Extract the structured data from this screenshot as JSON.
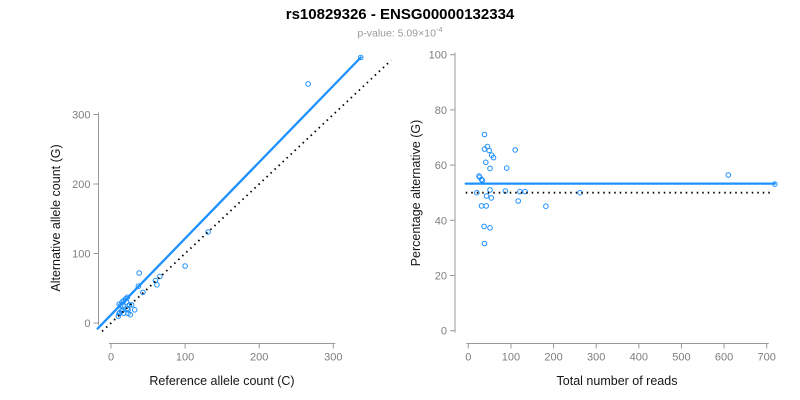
{
  "header": {
    "title": "rs10829326 - ENSG00000132334",
    "subtitle_prefix": "p-value: 5.09×10",
    "subtitle_exponent": "-4"
  },
  "colors": {
    "accent_blue": "#1E90FF",
    "axis_gray": "#999999",
    "tick_text_gray": "#7d7d7d",
    "reference_line_black": "#000000",
    "subtitle_gray": "#9a9a9a"
  },
  "chart_data": [
    {
      "type": "scatter",
      "xlabel": "Reference allele count (C)",
      "ylabel": "Alternative allele count (G)",
      "xticks": [
        0,
        100,
        200,
        300
      ],
      "yticks": [
        0,
        100,
        200,
        300
      ],
      "xlim": [
        -25,
        350
      ],
      "ylim": [
        -15,
        400
      ],
      "grid": false,
      "legend": "none",
      "x": [
        11,
        15,
        13,
        17,
        20,
        38,
        22,
        16,
        21,
        37,
        11,
        12,
        14,
        15,
        10,
        25,
        43,
        60,
        66,
        22,
        28,
        62,
        100,
        17,
        23,
        23,
        32,
        26,
        131,
        266,
        337
      ],
      "y": [
        27,
        30,
        25,
        32,
        35,
        72,
        37,
        25,
        30,
        53,
        14,
        15,
        17,
        18,
        10,
        26,
        44,
        61,
        67,
        21,
        26,
        55,
        82,
        14,
        19,
        14,
        19,
        12,
        131,
        344,
        382
      ],
      "lines": [
        {
          "name": "identity-line",
          "x1": -12,
          "y1": -12,
          "x2": 378,
          "y2": 378,
          "dashed": true
        },
        {
          "name": "fit-line",
          "x1": -18,
          "y1": -8,
          "x2": 337,
          "y2": 382,
          "dashed": false
        }
      ]
    },
    {
      "type": "scatter",
      "xlabel": "Total number of reads",
      "ylabel": "Percentage alternative (G)",
      "xticks": [
        0,
        100,
        200,
        300,
        400,
        500,
        600,
        700
      ],
      "yticks": [
        0,
        20,
        40,
        60,
        80,
        100
      ],
      "xlim": [
        -30,
        735
      ],
      "ylim": [
        0,
        100
      ],
      "grid": false,
      "legend": "none",
      "x": [
        38,
        45,
        38,
        49,
        55,
        110,
        59,
        41,
        51,
        90,
        25,
        27,
        31,
        33,
        20,
        51,
        87,
        121,
        133,
        43,
        54,
        117,
        182,
        31,
        42,
        37,
        51,
        38,
        262,
        610,
        719
      ],
      "y": [
        71.1,
        66.7,
        65.8,
        65.3,
        63.6,
        65.5,
        62.7,
        61.0,
        58.8,
        58.9,
        56.0,
        55.6,
        54.8,
        54.5,
        50.0,
        51.0,
        50.6,
        50.4,
        50.4,
        48.8,
        48.1,
        47.0,
        45.1,
        45.2,
        45.2,
        37.8,
        37.3,
        31.6,
        50.0,
        56.4,
        53.1
      ],
      "lines": [
        {
          "name": "null-50pct-line",
          "x1": -6,
          "y1": 50,
          "x2": 712,
          "y2": 50,
          "dashed": true
        },
        {
          "name": "fit-line",
          "x1": -6,
          "y1": 53.3,
          "x2": 719,
          "y2": 53.3,
          "dashed": false
        }
      ]
    }
  ]
}
